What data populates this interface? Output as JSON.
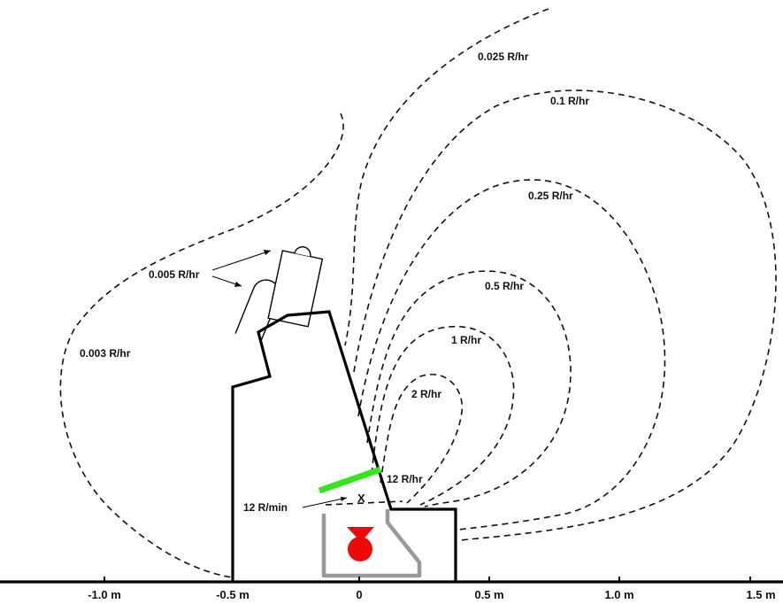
{
  "colors": {
    "shield_highlight": "#33e51a",
    "source_inner": "#999999",
    "source": "#ee0a0a",
    "lines": "#000000"
  },
  "axis": {
    "ticks": [
      {
        "label": "-1.0 m"
      },
      {
        "label": "-0.5 m"
      },
      {
        "label": "0"
      },
      {
        "label": "0.5 m"
      },
      {
        "label": "1.0 m"
      },
      {
        "label": "1.5 m"
      }
    ]
  },
  "contours": [
    {
      "label": "0.025 R/hr"
    },
    {
      "label": "0.1 R/hr"
    },
    {
      "label": "0.25 R/hr"
    },
    {
      "label": "0.5 R/hr"
    },
    {
      "label": "1 R/hr"
    },
    {
      "label": "2 R/hr"
    },
    {
      "label": "0.003 R/hr"
    }
  ],
  "annotations": {
    "detector_dose": "0.005 R/hr",
    "surface_dose": "12 R/hr",
    "contact_dose": "12 R/min",
    "point_marker": "X"
  }
}
